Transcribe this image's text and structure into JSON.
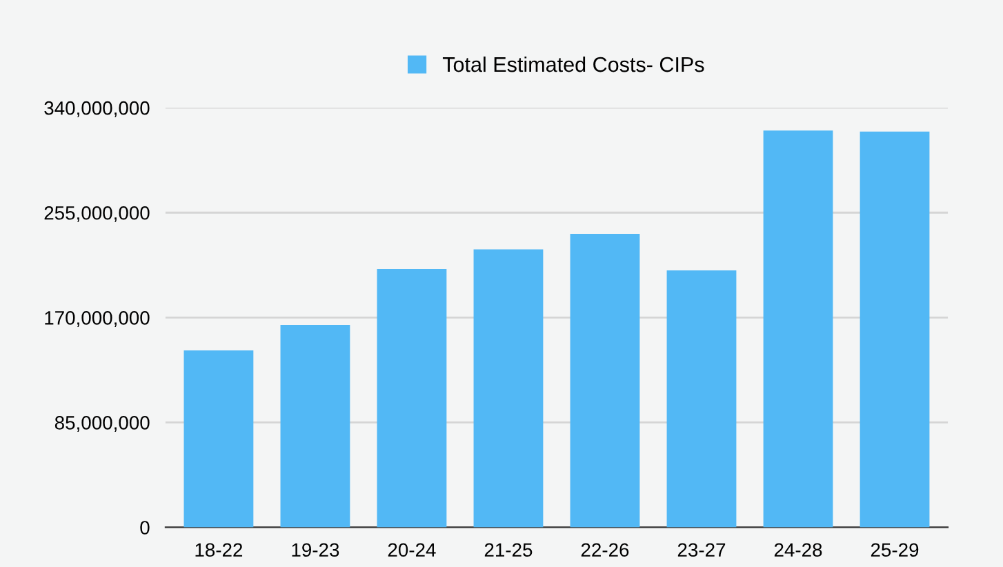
{
  "chart_data": {
    "type": "bar",
    "categories": [
      "18-22",
      "19-23",
      "20-24",
      "21-25",
      "22-26",
      "23-27",
      "24-28",
      "25-29"
    ],
    "series": [
      {
        "name": "Total Estimated Costs- CIPs",
        "color": "#52b8f5",
        "values": [
          143300000,
          164100000,
          209300000,
          225200000,
          237800000,
          208200000,
          321500000,
          320700000
        ]
      }
    ],
    "ylim": [
      0,
      340000000
    ],
    "yticks": [
      {
        "value": 0,
        "label": "0"
      },
      {
        "value": 85000000,
        "label": "85,000,000"
      },
      {
        "value": 170000000,
        "label": "170,000,000"
      },
      {
        "value": 255000000,
        "label": "255,000,000"
      },
      {
        "value": 340000000,
        "label": "340,000,000"
      }
    ],
    "grid": "y",
    "legend": "top"
  }
}
